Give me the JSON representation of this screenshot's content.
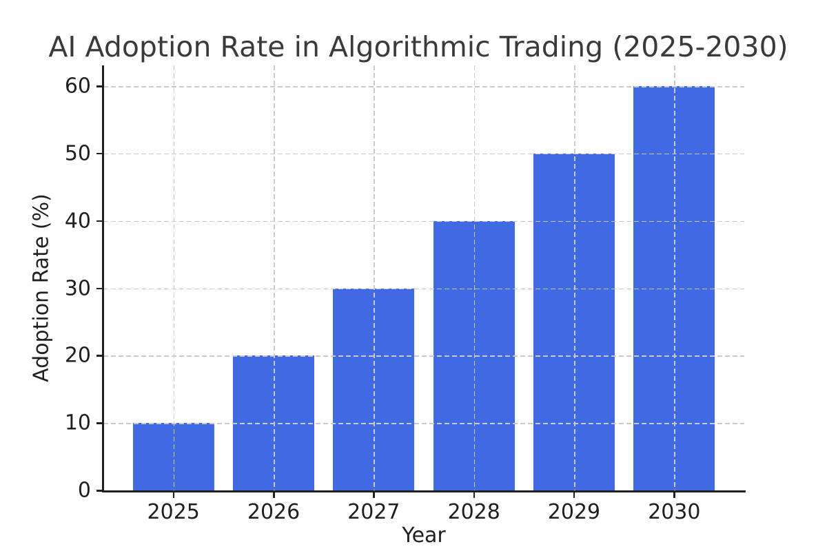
{
  "chart_data": {
    "type": "bar",
    "title": "AI Adoption Rate in Algorithmic Trading (2025-2030)",
    "xlabel": "Year",
    "ylabel": "Adoption Rate (%)",
    "categories": [
      "2025",
      "2026",
      "2027",
      "2028",
      "2029",
      "2030"
    ],
    "values": [
      10,
      20,
      30,
      40,
      50,
      60
    ],
    "yticks": [
      0,
      10,
      20,
      30,
      40,
      50,
      60
    ],
    "ylim": [
      0,
      63
    ],
    "grid": "dashed gridlines on both axes, drawn above bars",
    "legend_position": "none",
    "colors": {
      "bar": "#4169E1",
      "grid": "#c9c9c9",
      "spine": "#1f1f1f",
      "tick_label": "#1f1f1f",
      "title": "#3a3a3a",
      "background": "#ffffff"
    }
  }
}
